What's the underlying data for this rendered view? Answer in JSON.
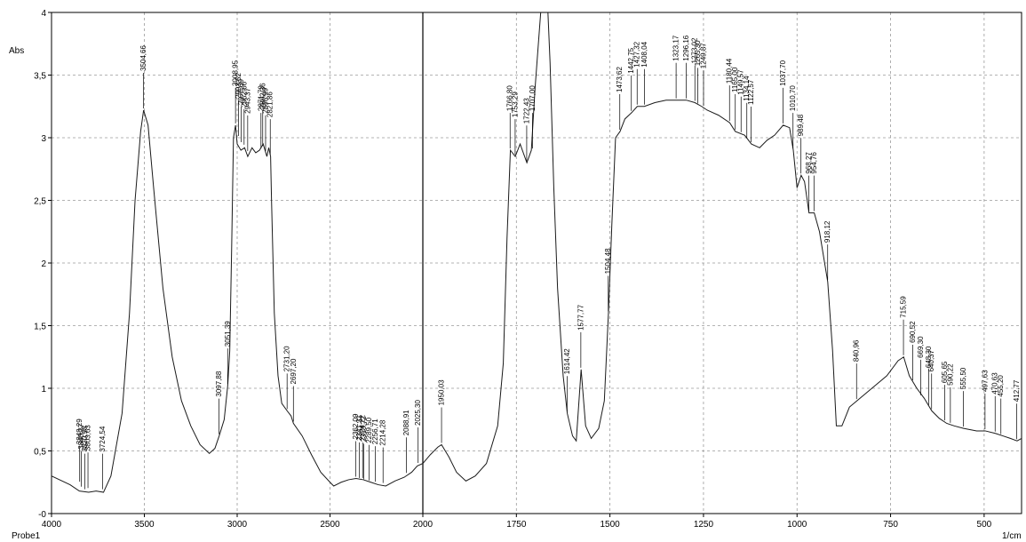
{
  "chart_data": {
    "type": "line",
    "title": "",
    "ylabel": "Abs",
    "xunit": "1/cm",
    "sample_label": "Probe1",
    "xlim": [
      4000,
      400
    ],
    "x_axis_break": 2000,
    "ylim": [
      0,
      4
    ],
    "grid": true,
    "x_ticks": [
      {
        "value": 4000,
        "label": "4000"
      },
      {
        "value": 3500,
        "label": "3500"
      },
      {
        "value": 3000,
        "label": "3000"
      },
      {
        "value": 2500,
        "label": "2500"
      },
      {
        "value": 2000,
        "label": "2000"
      },
      {
        "value": 1750,
        "label": "1750"
      },
      {
        "value": 1500,
        "label": "1500"
      },
      {
        "value": 1250,
        "label": "1250"
      },
      {
        "value": 1000,
        "label": "1000"
      },
      {
        "value": 750,
        "label": "750"
      },
      {
        "value": 500,
        "label": "500"
      }
    ],
    "y_ticks": [
      {
        "value": 0,
        "label": "-0"
      },
      {
        "value": 0.5,
        "label": "0,5"
      },
      {
        "value": 1,
        "label": "1"
      },
      {
        "value": 1.5,
        "label": "1,5"
      },
      {
        "value": 2,
        "label": "2"
      },
      {
        "value": 2.5,
        "label": "2,5"
      },
      {
        "value": 3,
        "label": "3"
      },
      {
        "value": 3.5,
        "label": "3,5"
      },
      {
        "value": 4,
        "label": "4"
      }
    ],
    "series": [
      {
        "points": [
          [
            4000,
            0.3
          ],
          [
            3900,
            0.23
          ],
          [
            3850,
            0.18
          ],
          [
            3800,
            0.17
          ],
          [
            3760,
            0.18
          ],
          [
            3720,
            0.17
          ],
          [
            3680,
            0.3
          ],
          [
            3620,
            0.8
          ],
          [
            3580,
            1.6
          ],
          [
            3550,
            2.5
          ],
          [
            3520,
            3.05
          ],
          [
            3504,
            3.22
          ],
          [
            3480,
            3.1
          ],
          [
            3450,
            2.6
          ],
          [
            3400,
            1.8
          ],
          [
            3350,
            1.25
          ],
          [
            3300,
            0.9
          ],
          [
            3250,
            0.7
          ],
          [
            3200,
            0.55
          ],
          [
            3150,
            0.48
          ],
          [
            3120,
            0.52
          ],
          [
            3097,
            0.62
          ],
          [
            3070,
            0.75
          ],
          [
            3051,
            1.02
          ],
          [
            3040,
            1.3
          ],
          [
            3030,
            2.1
          ],
          [
            3020,
            3.0
          ],
          [
            3009,
            3.1
          ],
          [
            3000,
            2.95
          ],
          [
            2980,
            2.9
          ],
          [
            2960,
            2.92
          ],
          [
            2943,
            2.85
          ],
          [
            2920,
            2.92
          ],
          [
            2900,
            2.88
          ],
          [
            2880,
            2.9
          ],
          [
            2860,
            2.95
          ],
          [
            2840,
            2.85
          ],
          [
            2830,
            2.92
          ],
          [
            2820,
            2.85
          ],
          [
            2815,
            2.5
          ],
          [
            2800,
            1.6
          ],
          [
            2780,
            1.1
          ],
          [
            2760,
            0.88
          ],
          [
            2731,
            0.82
          ],
          [
            2710,
            0.78
          ],
          [
            2697,
            0.72
          ],
          [
            2650,
            0.62
          ],
          [
            2600,
            0.47
          ],
          [
            2550,
            0.33
          ],
          [
            2500,
            0.25
          ],
          [
            2480,
            0.22
          ],
          [
            2440,
            0.25
          ],
          [
            2400,
            0.27
          ],
          [
            2360,
            0.28
          ],
          [
            2320,
            0.27
          ],
          [
            2280,
            0.25
          ],
          [
            2240,
            0.23
          ],
          [
            2200,
            0.22
          ],
          [
            2150,
            0.26
          ],
          [
            2100,
            0.29
          ],
          [
            2060,
            0.33
          ],
          [
            2030,
            0.38
          ],
          [
            2000,
            0.4
          ],
          [
            1980,
            0.47
          ],
          [
            1960,
            0.53
          ],
          [
            1950,
            0.55
          ],
          [
            1930,
            0.45
          ],
          [
            1910,
            0.33
          ],
          [
            1885,
            0.26
          ],
          [
            1860,
            0.3
          ],
          [
            1830,
            0.4
          ],
          [
            1800,
            0.7
          ],
          [
            1785,
            1.2
          ],
          [
            1775,
            2.2
          ],
          [
            1766,
            2.9
          ],
          [
            1753,
            2.85
          ],
          [
            1740,
            2.95
          ],
          [
            1722,
            2.8
          ],
          [
            1710,
            2.9
          ],
          [
            1700,
            3.4
          ],
          [
            1690,
            3.8
          ],
          [
            1680,
            4.2
          ],
          [
            1670,
            4.3
          ],
          [
            1660,
            3.6
          ],
          [
            1650,
            2.6
          ],
          [
            1640,
            1.8
          ],
          [
            1625,
            1.1
          ],
          [
            1614,
            0.8
          ],
          [
            1600,
            0.62
          ],
          [
            1590,
            0.58
          ],
          [
            1577,
            1.15
          ],
          [
            1565,
            0.7
          ],
          [
            1550,
            0.6
          ],
          [
            1530,
            0.68
          ],
          [
            1515,
            0.9
          ],
          [
            1504,
            1.6
          ],
          [
            1495,
            2.3
          ],
          [
            1485,
            3.0
          ],
          [
            1473,
            3.05
          ],
          [
            1460,
            3.15
          ],
          [
            1442,
            3.2
          ],
          [
            1427,
            3.25
          ],
          [
            1408,
            3.25
          ],
          [
            1380,
            3.28
          ],
          [
            1350,
            3.3
          ],
          [
            1323,
            3.3
          ],
          [
            1296,
            3.3
          ],
          [
            1273,
            3.28
          ],
          [
            1255,
            3.25
          ],
          [
            1240,
            3.22
          ],
          [
            1210,
            3.18
          ],
          [
            1180,
            3.12
          ],
          [
            1165,
            3.05
          ],
          [
            1140,
            3.02
          ],
          [
            1122,
            2.95
          ],
          [
            1100,
            2.92
          ],
          [
            1080,
            2.98
          ],
          [
            1060,
            3.02
          ],
          [
            1037,
            3.1
          ],
          [
            1020,
            3.08
          ],
          [
            1010,
            2.9
          ],
          [
            1000,
            2.6
          ],
          [
            989,
            2.7
          ],
          [
            980,
            2.65
          ],
          [
            968,
            2.4
          ],
          [
            954,
            2.4
          ],
          [
            940,
            2.25
          ],
          [
            918,
            1.85
          ],
          [
            905,
            1.3
          ],
          [
            895,
            0.7
          ],
          [
            880,
            0.7
          ],
          [
            860,
            0.85
          ],
          [
            840,
            0.9
          ],
          [
            800,
            1.0
          ],
          [
            760,
            1.1
          ],
          [
            730,
            1.22
          ],
          [
            715,
            1.25
          ],
          [
            700,
            1.1
          ],
          [
            680,
            1.0
          ],
          [
            660,
            0.92
          ],
          [
            640,
            0.82
          ],
          [
            620,
            0.76
          ],
          [
            600,
            0.72
          ],
          [
            580,
            0.7
          ],
          [
            555,
            0.68
          ],
          [
            520,
            0.66
          ],
          [
            497,
            0.66
          ],
          [
            470,
            0.64
          ],
          [
            450,
            0.62
          ],
          [
            430,
            0.6
          ],
          [
            412,
            0.58
          ],
          [
            400,
            0.6
          ]
        ]
      }
    ],
    "peak_labels": [
      {
        "x": 3848.29,
        "y": 0.24,
        "label": "3848,29"
      },
      {
        "x": 3840.27,
        "y": 0.2,
        "label": "3840,27"
      },
      {
        "x": 3820.98,
        "y": 0.18,
        "label": "3820,98"
      },
      {
        "x": 3803.63,
        "y": 0.19,
        "label": "3803,63"
      },
      {
        "x": 3724.54,
        "y": 0.18,
        "label": "3724,54"
      },
      {
        "x": 3504.66,
        "y": 3.22,
        "label": "3504,66"
      },
      {
        "x": 3097.88,
        "y": 0.62,
        "label": "3097,88"
      },
      {
        "x": 3051.39,
        "y": 1.02,
        "label": "3051,39"
      },
      {
        "x": 3008.95,
        "y": 3.1,
        "label": "3008,95"
      },
      {
        "x": 2993.52,
        "y": 3.0,
        "label": "2993,52"
      },
      {
        "x": 2978.09,
        "y": 2.95,
        "label": "2978,09"
      },
      {
        "x": 2962.66,
        "y": 2.93,
        "label": "2962,66"
      },
      {
        "x": 2943.37,
        "y": 2.88,
        "label": "2943,37"
      },
      {
        "x": 2871.79,
        "y": 2.9,
        "label": "2871,79"
      },
      {
        "x": 2862.36,
        "y": 2.92,
        "label": "2862,36"
      },
      {
        "x": 2846.99,
        "y": 2.88,
        "label": "2846,99"
      },
      {
        "x": 2821.86,
        "y": 2.85,
        "label": "2821,86"
      },
      {
        "x": 2731.2,
        "y": 0.82,
        "label": "2731,20"
      },
      {
        "x": 2697.2,
        "y": 0.72,
        "label": "2697,20"
      },
      {
        "x": 2362.09,
        "y": 0.28,
        "label": "2362,09"
      },
      {
        "x": 2341.31,
        "y": 0.27,
        "label": "2341,31"
      },
      {
        "x": 2324.22,
        "y": 0.27,
        "label": "2324,22"
      },
      {
        "x": 2318.72,
        "y": 0.26,
        "label": "2318,72"
      },
      {
        "x": 2289.5,
        "y": 0.25,
        "label": "2289,50"
      },
      {
        "x": 2256.71,
        "y": 0.24,
        "label": "2256,71"
      },
      {
        "x": 2214.28,
        "y": 0.23,
        "label": "2214,28"
      },
      {
        "x": 2088.91,
        "y": 0.31,
        "label": "2088,91"
      },
      {
        "x": 2025.3,
        "y": 0.39,
        "label": "2025,30"
      },
      {
        "x": 1950.03,
        "y": 0.55,
        "label": "1950,03"
      },
      {
        "x": 1766.8,
        "y": 2.9,
        "label": "1766,80"
      },
      {
        "x": 1753.29,
        "y": 2.85,
        "label": "1753,29"
      },
      {
        "x": 1722.43,
        "y": 2.8,
        "label": "1722,43"
      },
      {
        "x": 1707.0,
        "y": 2.9,
        "label": "1707,00"
      },
      {
        "x": 1614.42,
        "y": 0.8,
        "label": "1614,42"
      },
      {
        "x": 1577.77,
        "y": 1.15,
        "label": "1577,77"
      },
      {
        "x": 1504.48,
        "y": 1.6,
        "label": "1504,48"
      },
      {
        "x": 1473.62,
        "y": 3.05,
        "label": "1473,62"
      },
      {
        "x": 1442.75,
        "y": 3.2,
        "label": "1442,75"
      },
      {
        "x": 1427.32,
        "y": 3.25,
        "label": "1427,32"
      },
      {
        "x": 1408.04,
        "y": 3.25,
        "label": "1408,04"
      },
      {
        "x": 1323.17,
        "y": 3.3,
        "label": "1323,17"
      },
      {
        "x": 1296.16,
        "y": 3.3,
        "label": "1296,16"
      },
      {
        "x": 1273.02,
        "y": 3.28,
        "label": "1273,02"
      },
      {
        "x": 1265.3,
        "y": 3.26,
        "label": "1265,30"
      },
      {
        "x": 1249.87,
        "y": 3.24,
        "label": "1249,87"
      },
      {
        "x": 1180.44,
        "y": 3.12,
        "label": "1180,44"
      },
      {
        "x": 1165.0,
        "y": 3.05,
        "label": "1165,00"
      },
      {
        "x": 1149.57,
        "y": 3.03,
        "label": "1149,57"
      },
      {
        "x": 1134.14,
        "y": 2.98,
        "label": "1134,14"
      },
      {
        "x": 1122.57,
        "y": 2.95,
        "label": "1122,57"
      },
      {
        "x": 1037.7,
        "y": 3.1,
        "label": "1037,70"
      },
      {
        "x": 1010.7,
        "y": 2.9,
        "label": "1010,70"
      },
      {
        "x": 989.48,
        "y": 2.7,
        "label": "989,48"
      },
      {
        "x": 968.27,
        "y": 2.4,
        "label": "968,27"
      },
      {
        "x": 954.76,
        "y": 2.4,
        "label": "954,76"
      },
      {
        "x": 918.12,
        "y": 1.85,
        "label": "918,12"
      },
      {
        "x": 840.96,
        "y": 0.9,
        "label": "840,96"
      },
      {
        "x": 715.59,
        "y": 1.25,
        "label": "715,59"
      },
      {
        "x": 690.52,
        "y": 1.05,
        "label": "690,52"
      },
      {
        "x": 669.3,
        "y": 0.93,
        "label": "669,30"
      },
      {
        "x": 648.3,
        "y": 0.85,
        "label": "648,30"
      },
      {
        "x": 640.37,
        "y": 0.82,
        "label": "640,37"
      },
      {
        "x": 605.65,
        "y": 0.73,
        "label": "605,65"
      },
      {
        "x": 590.22,
        "y": 0.71,
        "label": "590,22"
      },
      {
        "x": 555.5,
        "y": 0.68,
        "label": "555,50"
      },
      {
        "x": 497.63,
        "y": 0.66,
        "label": "497,63"
      },
      {
        "x": 470.63,
        "y": 0.64,
        "label": "470,63"
      },
      {
        "x": 455.2,
        "y": 0.62,
        "label": "455,20"
      },
      {
        "x": 412.77,
        "y": 0.58,
        "label": "412,77"
      }
    ]
  }
}
